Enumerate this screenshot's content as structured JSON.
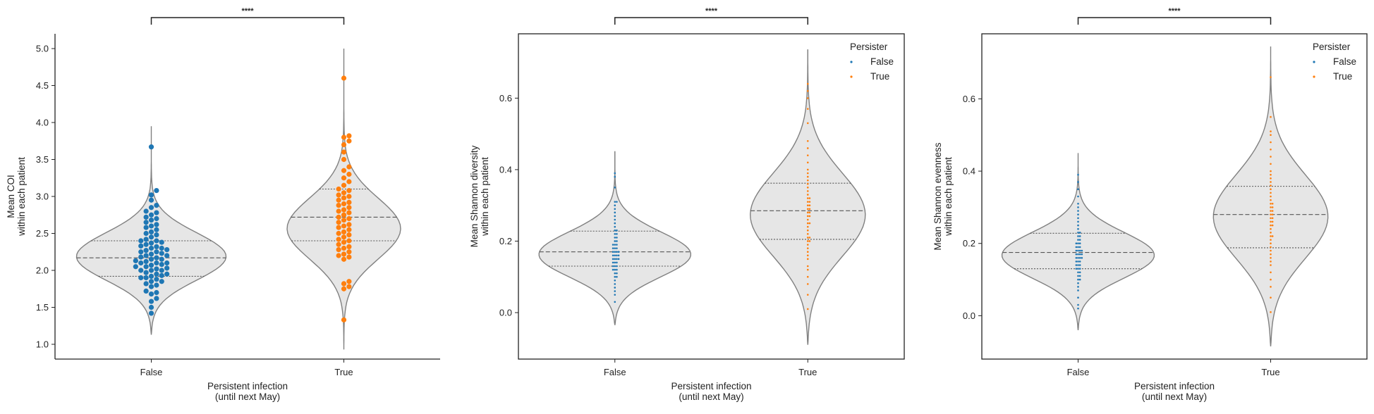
{
  "chart_data": [
    {
      "type": "violin",
      "xlabel": [
        "Persistent infection",
        "(until next May)"
      ],
      "ylabel": [
        "Mean COI",
        "within each patient"
      ],
      "categories": [
        "False",
        "True"
      ],
      "ylim": [
        0.8,
        5.2
      ],
      "yticks": [
        1.0,
        1.5,
        2.0,
        2.5,
        3.0,
        3.5,
        4.0,
        4.5,
        5.0
      ],
      "ytick_labels": [
        "1.0",
        "1.5",
        "2.0",
        "2.5",
        "3.0",
        "3.5",
        "4.0",
        "4.5",
        "5.0"
      ],
      "significance": "****",
      "box": "full",
      "violin": [
        {
          "category": "False",
          "min": 1.13,
          "max": 3.95,
          "q1": 1.92,
          "median": 2.17,
          "q3": 2.4,
          "mode": 2.17,
          "max_half_width": 0.4,
          "sd": 0.33
        },
        {
          "category": "True",
          "min": 0.93,
          "max": 5.0,
          "q1": 2.4,
          "median": 2.72,
          "q3": 3.1,
          "mode": 2.55,
          "max_half_width": 0.3,
          "sd": 0.42
        }
      ],
      "points": [
        {
          "category": "False",
          "values": [
            1.42,
            1.5,
            1.58,
            1.62,
            1.68,
            1.7,
            1.72,
            1.78,
            1.8,
            1.82,
            1.85,
            1.85,
            1.88,
            1.9,
            1.9,
            1.92,
            1.93,
            1.95,
            1.95,
            1.97,
            2.0,
            2.0,
            2.0,
            2.02,
            2.03,
            2.05,
            2.05,
            2.07,
            2.08,
            2.1,
            2.1,
            2.1,
            2.12,
            2.13,
            2.15,
            2.15,
            2.17,
            2.18,
            2.2,
            2.2,
            2.22,
            2.23,
            2.25,
            2.25,
            2.27,
            2.28,
            2.3,
            2.3,
            2.32,
            2.33,
            2.35,
            2.37,
            2.38,
            2.4,
            2.4,
            2.42,
            2.45,
            2.48,
            2.5,
            2.52,
            2.55,
            2.58,
            2.6,
            2.62,
            2.65,
            2.68,
            2.7,
            2.72,
            2.75,
            2.78,
            2.8,
            2.85,
            2.88,
            2.95,
            3.02,
            3.08,
            3.67
          ]
        },
        {
          "category": "True",
          "values": [
            1.33,
            1.75,
            1.78,
            1.82,
            1.85,
            2.15,
            2.18,
            2.2,
            2.22,
            2.25,
            2.28,
            2.3,
            2.32,
            2.35,
            2.38,
            2.4,
            2.42,
            2.45,
            2.48,
            2.5,
            2.52,
            2.55,
            2.58,
            2.6,
            2.62,
            2.65,
            2.68,
            2.7,
            2.72,
            2.75,
            2.78,
            2.8,
            2.82,
            2.85,
            2.88,
            2.9,
            2.92,
            2.95,
            2.98,
            3.0,
            3.02,
            3.05,
            3.08,
            3.1,
            3.15,
            3.2,
            3.25,
            3.3,
            3.35,
            3.4,
            3.5,
            3.6,
            3.7,
            3.75,
            3.8,
            3.82,
            4.6
          ]
        }
      ],
      "legend": null
    },
    {
      "type": "violin",
      "xlabel": [
        "Persistent infection",
        "(until next May)"
      ],
      "ylabel": [
        "Mean Shannon diversity",
        "within each patient"
      ],
      "categories": [
        "False",
        "True"
      ],
      "ylim": [
        -0.13,
        0.78
      ],
      "yticks": [
        0.0,
        0.2,
        0.4,
        0.6
      ],
      "ytick_labels": [
        "0.0",
        "0.2",
        "0.4",
        "0.6"
      ],
      "significance": "****",
      "box": "full",
      "violin": [
        {
          "category": "False",
          "min": -0.035,
          "max": 0.45,
          "q1": 0.13,
          "median": 0.17,
          "q3": 0.228,
          "mode": 0.16,
          "max_half_width": 0.4,
          "sd": 0.065
        },
        {
          "category": "True",
          "min": -0.09,
          "max": 0.735,
          "q1": 0.205,
          "median": 0.285,
          "q3": 0.362,
          "mode": 0.27,
          "max_half_width": 0.3,
          "sd": 0.12
        }
      ],
      "points": [
        {
          "category": "False",
          "values": [
            0.03,
            0.05,
            0.06,
            0.07,
            0.08,
            0.09,
            0.1,
            0.1,
            0.11,
            0.11,
            0.12,
            0.12,
            0.12,
            0.13,
            0.13,
            0.13,
            0.14,
            0.14,
            0.14,
            0.15,
            0.15,
            0.15,
            0.15,
            0.16,
            0.16,
            0.16,
            0.16,
            0.17,
            0.17,
            0.17,
            0.17,
            0.18,
            0.18,
            0.18,
            0.19,
            0.19,
            0.19,
            0.2,
            0.2,
            0.21,
            0.21,
            0.22,
            0.22,
            0.23,
            0.23,
            0.24,
            0.25,
            0.26,
            0.27,
            0.28,
            0.29,
            0.3,
            0.31,
            0.31,
            0.35,
            0.38,
            0.39
          ]
        },
        {
          "category": "True",
          "values": [
            0.01,
            0.05,
            0.08,
            0.1,
            0.12,
            0.13,
            0.15,
            0.16,
            0.17,
            0.18,
            0.19,
            0.2,
            0.2,
            0.21,
            0.21,
            0.22,
            0.23,
            0.24,
            0.25,
            0.25,
            0.26,
            0.27,
            0.27,
            0.28,
            0.28,
            0.29,
            0.29,
            0.3,
            0.3,
            0.31,
            0.31,
            0.32,
            0.32,
            0.33,
            0.34,
            0.35,
            0.36,
            0.37,
            0.38,
            0.39,
            0.4,
            0.42,
            0.44,
            0.46,
            0.48,
            0.53,
            0.57,
            0.6,
            0.62,
            0.64
          ]
        }
      ],
      "legend": {
        "title": "Persister",
        "entries": [
          "False",
          "True"
        ],
        "placement": "top-right"
      }
    },
    {
      "type": "violin",
      "xlabel": [
        "Persistent infection",
        "(until next May)"
      ],
      "ylabel": [
        "Mean Shannon evenness",
        "within each patient"
      ],
      "categories": [
        "False",
        "True"
      ],
      "ylim": [
        -0.12,
        0.78
      ],
      "yticks": [
        0.0,
        0.2,
        0.4,
        0.6
      ],
      "ytick_labels": [
        "0.0",
        "0.2",
        "0.4",
        "0.6"
      ],
      "significance": "****",
      "box": "full",
      "violin": [
        {
          "category": "False",
          "min": -0.04,
          "max": 0.45,
          "q1": 0.13,
          "median": 0.175,
          "q3": 0.228,
          "mode": 0.165,
          "max_half_width": 0.4,
          "sd": 0.065
        },
        {
          "category": "True",
          "min": -0.085,
          "max": 0.745,
          "q1": 0.188,
          "median": 0.28,
          "q3": 0.358,
          "mode": 0.27,
          "max_half_width": 0.3,
          "sd": 0.12
        }
      ],
      "points": [
        {
          "category": "False",
          "values": [
            0.02,
            0.03,
            0.05,
            0.07,
            0.08,
            0.09,
            0.1,
            0.1,
            0.11,
            0.11,
            0.12,
            0.12,
            0.13,
            0.13,
            0.13,
            0.14,
            0.14,
            0.14,
            0.15,
            0.15,
            0.15,
            0.16,
            0.16,
            0.16,
            0.16,
            0.17,
            0.17,
            0.17,
            0.17,
            0.18,
            0.18,
            0.18,
            0.18,
            0.19,
            0.19,
            0.19,
            0.2,
            0.2,
            0.2,
            0.21,
            0.21,
            0.22,
            0.22,
            0.23,
            0.23,
            0.24,
            0.25,
            0.26,
            0.27,
            0.28,
            0.29,
            0.3,
            0.31,
            0.33,
            0.35,
            0.37,
            0.39
          ]
        },
        {
          "category": "True",
          "values": [
            0.01,
            0.05,
            0.08,
            0.1,
            0.12,
            0.14,
            0.15,
            0.16,
            0.17,
            0.18,
            0.19,
            0.2,
            0.21,
            0.22,
            0.22,
            0.23,
            0.24,
            0.25,
            0.25,
            0.26,
            0.26,
            0.27,
            0.27,
            0.28,
            0.28,
            0.29,
            0.29,
            0.3,
            0.3,
            0.31,
            0.31,
            0.32,
            0.33,
            0.34,
            0.35,
            0.36,
            0.37,
            0.38,
            0.39,
            0.4,
            0.42,
            0.44,
            0.46,
            0.48,
            0.5,
            0.51,
            0.55,
            0.66
          ]
        }
      ],
      "legend": {
        "title": "Persister",
        "entries": [
          "False",
          "True"
        ],
        "placement": "top-right"
      }
    }
  ],
  "colors": {
    "False": "#1f77b4",
    "True": "#ff7f0e",
    "violin_fill": "#e6e6e6",
    "violin_edge": "#808080",
    "axis": "#222222"
  }
}
